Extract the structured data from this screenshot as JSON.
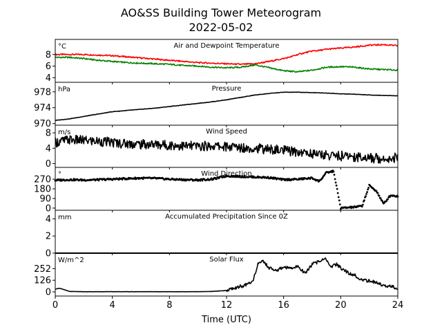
{
  "figure": {
    "title_line1": "AO&SS Building Tower Meteorogram",
    "title_line2": "2022-05-02",
    "xlabel": "Time (UTC)",
    "xticks": [
      0,
      4,
      8,
      12,
      16,
      20,
      24
    ],
    "xlim": [
      0,
      24
    ]
  },
  "chart_data": [
    {
      "type": "line",
      "title": "Air and Dewpoint Temperature",
      "unit": "°C",
      "ylim": [
        3.2,
        10.6
      ],
      "yticks": [
        4,
        6,
        8
      ],
      "series": [
        {
          "color": "#ff0000",
          "x": [
            0,
            1,
            2,
            3,
            4,
            5,
            6,
            7,
            8,
            9,
            10,
            11,
            12,
            13,
            14,
            15,
            16,
            16.5,
            17,
            17.5,
            18,
            18.5,
            19,
            19.5,
            20,
            21,
            22,
            23,
            24
          ],
          "y": [
            8.0,
            8.0,
            8.0,
            7.9,
            7.8,
            7.6,
            7.4,
            7.2,
            7.0,
            6.8,
            6.6,
            6.5,
            6.4,
            6.3,
            6.4,
            6.8,
            7.3,
            7.6,
            8.0,
            8.3,
            8.6,
            8.7,
            8.9,
            9.0,
            9.1,
            9.3,
            9.6,
            9.7,
            9.5
          ]
        },
        {
          "color": "#008000",
          "x": [
            0,
            1,
            2,
            3,
            4,
            5,
            6,
            7,
            8,
            9,
            10,
            11,
            12,
            13,
            14,
            15,
            16,
            17,
            18,
            19,
            20,
            21,
            22,
            23,
            24
          ],
          "y": [
            7.5,
            7.5,
            7.3,
            7.0,
            6.8,
            6.6,
            6.5,
            6.4,
            6.3,
            6.1,
            6.0,
            5.8,
            5.7,
            5.8,
            6.2,
            5.7,
            5.2,
            5.0,
            5.3,
            5.8,
            5.9,
            5.8,
            5.5,
            5.4,
            5.3
          ]
        }
      ]
    },
    {
      "type": "line",
      "title": "Pressure",
      "unit": "hPa",
      "ylim": [
        969.6,
        980.4
      ],
      "yticks": [
        970,
        974,
        978
      ],
      "series": [
        {
          "color": "#000000",
          "x": [
            0,
            1,
            2,
            3,
            4,
            5,
            6,
            7,
            8,
            9,
            10,
            11,
            12,
            13,
            14,
            15,
            16,
            17,
            18,
            19,
            20,
            21,
            22,
            23,
            24
          ],
          "y": [
            970.8,
            971.2,
            971.8,
            972.4,
            973.0,
            973.3,
            973.6,
            973.9,
            974.3,
            974.7,
            975.1,
            975.5,
            976.0,
            976.6,
            977.2,
            977.6,
            977.9,
            977.9,
            977.8,
            977.7,
            977.5,
            977.4,
            977.2,
            977.1,
            977.0
          ]
        }
      ]
    },
    {
      "type": "line",
      "title": "Wind Speed",
      "unit": "m/s",
      "ylim": [
        -1.0,
        10.0
      ],
      "yticks": [
        0,
        4,
        8
      ],
      "series": [
        {
          "color": "#000000",
          "x": [
            0,
            1,
            2,
            3,
            4,
            5,
            6,
            7,
            8,
            9,
            10,
            11,
            12,
            13,
            14,
            15,
            16,
            17,
            18,
            19,
            20,
            21,
            22,
            23,
            24
          ],
          "y": [
            5.5,
            6.2,
            6.0,
            5.8,
            5.5,
            5.2,
            5.0,
            5.0,
            4.8,
            4.6,
            4.5,
            4.6,
            4.4,
            4.2,
            4.0,
            3.7,
            3.4,
            3.0,
            2.6,
            2.2,
            2.0,
            1.8,
            1.5,
            1.3,
            1.6
          ]
        }
      ]
    },
    {
      "type": "scatter",
      "title": "Wind Direction",
      "unit": "°",
      "ylim": [
        -20,
        380
      ],
      "yticks": [
        0,
        90,
        180,
        270
      ],
      "series": [
        {
          "color": "#000000",
          "x": [
            0,
            1,
            2,
            3,
            4,
            5,
            6,
            7,
            8,
            9,
            10,
            11,
            12,
            13,
            14,
            15,
            16,
            17,
            18,
            18.5,
            19,
            19.5,
            20,
            20.5,
            21,
            21.5,
            22,
            22.5,
            23,
            23.5,
            24
          ],
          "y": [
            260,
            265,
            262,
            265,
            270,
            275,
            280,
            278,
            270,
            265,
            262,
            270,
            300,
            295,
            290,
            285,
            265,
            270,
            280,
            250,
            330,
            345,
            0,
            5,
            10,
            20,
            210,
            160,
            40,
            120,
            110
          ]
        }
      ]
    },
    {
      "type": "line",
      "title": "Accumulated Precipitation Since 0Z",
      "unit": "mm",
      "ylim": [
        0,
        5
      ],
      "yticks": [
        0,
        2,
        4
      ],
      "series": [
        {
          "color": "#000000",
          "x": [
            0,
            24
          ],
          "y": [
            0,
            0
          ]
        }
      ]
    },
    {
      "type": "line",
      "title": "Solar Flux",
      "unit": "W/m^2",
      "ylim": [
        -45,
        420
      ],
      "yticks": [
        0,
        126,
        252
      ],
      "series": [
        {
          "color": "#000000",
          "x": [
            0,
            0.3,
            1,
            2,
            4,
            6,
            8,
            10,
            11,
            12,
            12.5,
            13,
            13.5,
            13.8,
            14.2,
            14.6,
            15,
            15.5,
            16,
            16.5,
            17,
            17.5,
            18,
            18.5,
            18.9,
            19.3,
            19.7,
            20,
            20.5,
            21,
            21.5,
            22,
            22.5,
            23,
            23.5,
            24
          ],
          "y": [
            30,
            40,
            5,
            2,
            2,
            2,
            2,
            2,
            5,
            15,
            40,
            60,
            80,
            100,
            300,
            330,
            260,
            230,
            270,
            250,
            280,
            200,
            300,
            330,
            370,
            270,
            300,
            260,
            210,
            180,
            130,
            120,
            100,
            70,
            60,
            40
          ]
        }
      ]
    }
  ]
}
